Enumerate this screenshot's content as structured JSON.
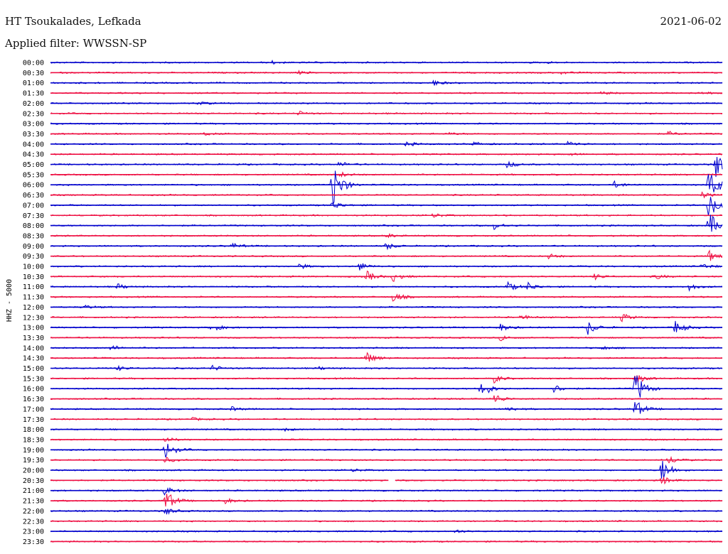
{
  "header": {
    "station": "HT Tsoukalades, Lefkada",
    "date": "2021-06-02",
    "filter": "Applied filter: WWSSN-SP"
  },
  "chart_data": {
    "type": "helicorder",
    "channel_label": "HHZ - 5000",
    "colors": [
      "#0000cc",
      "#ee1144"
    ],
    "rows": [
      {
        "label": "00:00",
        "events": [
          {
            "t": 0.33,
            "a": 2
          },
          {
            "t": 0.74,
            "a": 1
          }
        ]
      },
      {
        "label": "00:30",
        "events": [
          {
            "t": 0.37,
            "a": 2
          },
          {
            "t": 0.76,
            "a": 2
          }
        ]
      },
      {
        "label": "01:00",
        "events": [
          {
            "t": 0.57,
            "a": 4
          }
        ]
      },
      {
        "label": "01:30",
        "events": [
          {
            "t": 0.82,
            "a": 2
          },
          {
            "t": 0.97,
            "a": 2
          }
        ]
      },
      {
        "label": "02:00",
        "events": [
          {
            "t": 0.22,
            "a": 2
          }
        ]
      },
      {
        "label": "02:30",
        "events": [
          {
            "t": 0.37,
            "a": 3
          }
        ]
      },
      {
        "label": "03:00",
        "events": []
      },
      {
        "label": "03:30",
        "events": [
          {
            "t": 0.23,
            "a": 2
          },
          {
            "t": 0.59,
            "a": 2
          },
          {
            "t": 0.92,
            "a": 3
          }
        ]
      },
      {
        "label": "04:00",
        "events": [
          {
            "t": 0.53,
            "a": 3
          },
          {
            "t": 0.63,
            "a": 3
          },
          {
            "t": 0.77,
            "a": 4
          }
        ]
      },
      {
        "label": "04:30",
        "events": [
          {
            "t": 0.77,
            "a": 2
          }
        ]
      },
      {
        "label": "05:00",
        "events": [
          {
            "t": 0.43,
            "a": 4
          },
          {
            "t": 0.68,
            "a": 5
          },
          {
            "t": 0.99,
            "a": 20
          }
        ]
      },
      {
        "label": "05:30",
        "events": [
          {
            "t": 0.43,
            "a": 4
          }
        ]
      },
      {
        "label": "06:00",
        "events": [
          {
            "t": 0.42,
            "a": 36
          },
          {
            "t": 0.84,
            "a": 5
          },
          {
            "t": 0.98,
            "a": 34
          }
        ]
      },
      {
        "label": "06:30",
        "events": [
          {
            "t": 0.97,
            "a": 4
          }
        ]
      },
      {
        "label": "07:00",
        "events": [
          {
            "t": 0.42,
            "a": 6
          },
          {
            "t": 0.98,
            "a": 20
          }
        ]
      },
      {
        "label": "07:30",
        "events": [
          {
            "t": 0.57,
            "a": 3
          }
        ]
      },
      {
        "label": "08:00",
        "events": [
          {
            "t": 0.66,
            "a": 6
          },
          {
            "t": 0.98,
            "a": 20
          }
        ]
      },
      {
        "label": "08:30",
        "events": [
          {
            "t": 0.5,
            "a": 3
          }
        ]
      },
      {
        "label": "09:00",
        "events": [
          {
            "t": 0.27,
            "a": 4
          },
          {
            "t": 0.5,
            "a": 5
          }
        ]
      },
      {
        "label": "09:30",
        "events": [
          {
            "t": 0.74,
            "a": 4
          },
          {
            "t": 0.98,
            "a": 8
          }
        ]
      },
      {
        "label": "10:00",
        "events": [
          {
            "t": 0.37,
            "a": 4
          },
          {
            "t": 0.46,
            "a": 6
          },
          {
            "t": 0.97,
            "a": 4
          }
        ]
      },
      {
        "label": "10:30",
        "events": [
          {
            "t": 0.47,
            "a": 8
          },
          {
            "t": 0.51,
            "a": 7
          },
          {
            "t": 0.81,
            "a": 4
          },
          {
            "t": 0.9,
            "a": 4
          }
        ]
      },
      {
        "label": "11:00",
        "events": [
          {
            "t": 0.1,
            "a": 4
          },
          {
            "t": 0.68,
            "a": 7
          },
          {
            "t": 0.71,
            "a": 6
          },
          {
            "t": 0.95,
            "a": 5
          }
        ]
      },
      {
        "label": "11:30",
        "events": [
          {
            "t": 0.51,
            "a": 8
          }
        ]
      },
      {
        "label": "12:00",
        "events": [
          {
            "t": 0.05,
            "a": 3
          }
        ]
      },
      {
        "label": "12:30",
        "events": [
          {
            "t": 0.7,
            "a": 4
          },
          {
            "t": 0.85,
            "a": 6
          }
        ]
      },
      {
        "label": "13:00",
        "events": [
          {
            "t": 0.24,
            "a": 6
          },
          {
            "t": 0.67,
            "a": 5
          },
          {
            "t": 0.8,
            "a": 10
          },
          {
            "t": 0.93,
            "a": 10
          }
        ]
      },
      {
        "label": "13:30",
        "events": [
          {
            "t": 0.67,
            "a": 4
          }
        ]
      },
      {
        "label": "14:00",
        "events": [
          {
            "t": 0.09,
            "a": 4
          },
          {
            "t": 0.82,
            "a": 3
          }
        ]
      },
      {
        "label": "14:30",
        "events": [
          {
            "t": 0.47,
            "a": 9
          }
        ]
      },
      {
        "label": "15:00",
        "events": [
          {
            "t": 0.1,
            "a": 3
          },
          {
            "t": 0.24,
            "a": 4
          },
          {
            "t": 0.4,
            "a": 2
          }
        ]
      },
      {
        "label": "15:30",
        "events": [
          {
            "t": 0.66,
            "a": 6
          },
          {
            "t": 0.87,
            "a": 8
          }
        ]
      },
      {
        "label": "16:00",
        "events": [
          {
            "t": 0.64,
            "a": 16
          },
          {
            "t": 0.75,
            "a": 6
          },
          {
            "t": 0.87,
            "a": 26
          }
        ]
      },
      {
        "label": "16:30",
        "events": [
          {
            "t": 0.66,
            "a": 8
          }
        ]
      },
      {
        "label": "17:00",
        "events": [
          {
            "t": 0.27,
            "a": 3
          },
          {
            "t": 0.68,
            "a": 4
          },
          {
            "t": 0.87,
            "a": 14
          }
        ]
      },
      {
        "label": "17:30",
        "events": [
          {
            "t": 0.21,
            "a": 2
          }
        ]
      },
      {
        "label": "18:00",
        "events": [
          {
            "t": 0.35,
            "a": 2
          }
        ]
      },
      {
        "label": "18:30",
        "events": [
          {
            "t": 0.17,
            "a": 4
          }
        ]
      },
      {
        "label": "19:00",
        "events": [
          {
            "t": 0.17,
            "a": 14
          }
        ]
      },
      {
        "label": "19:30",
        "events": [
          {
            "t": 0.17,
            "a": 4
          },
          {
            "t": 0.92,
            "a": 6
          }
        ]
      },
      {
        "label": "20:00",
        "events": [
          {
            "t": 0.45,
            "a": 2
          },
          {
            "t": 0.91,
            "a": 18
          }
        ]
      },
      {
        "label": "20:30",
        "events": [
          {
            "t": 0.91,
            "a": 6
          }
        ],
        "gap": [
          0.503,
          0.513
        ]
      },
      {
        "label": "21:00",
        "events": [
          {
            "t": 0.17,
            "a": 6
          }
        ]
      },
      {
        "label": "21:30",
        "events": [
          {
            "t": 0.17,
            "a": 18
          },
          {
            "t": 0.26,
            "a": 4
          }
        ]
      },
      {
        "label": "22:00",
        "events": [
          {
            "t": 0.17,
            "a": 6
          }
        ]
      },
      {
        "label": "22:30",
        "events": []
      },
      {
        "label": "23:00",
        "events": [
          {
            "t": 0.6,
            "a": 3
          }
        ]
      },
      {
        "label": "23:30",
        "events": []
      }
    ]
  }
}
